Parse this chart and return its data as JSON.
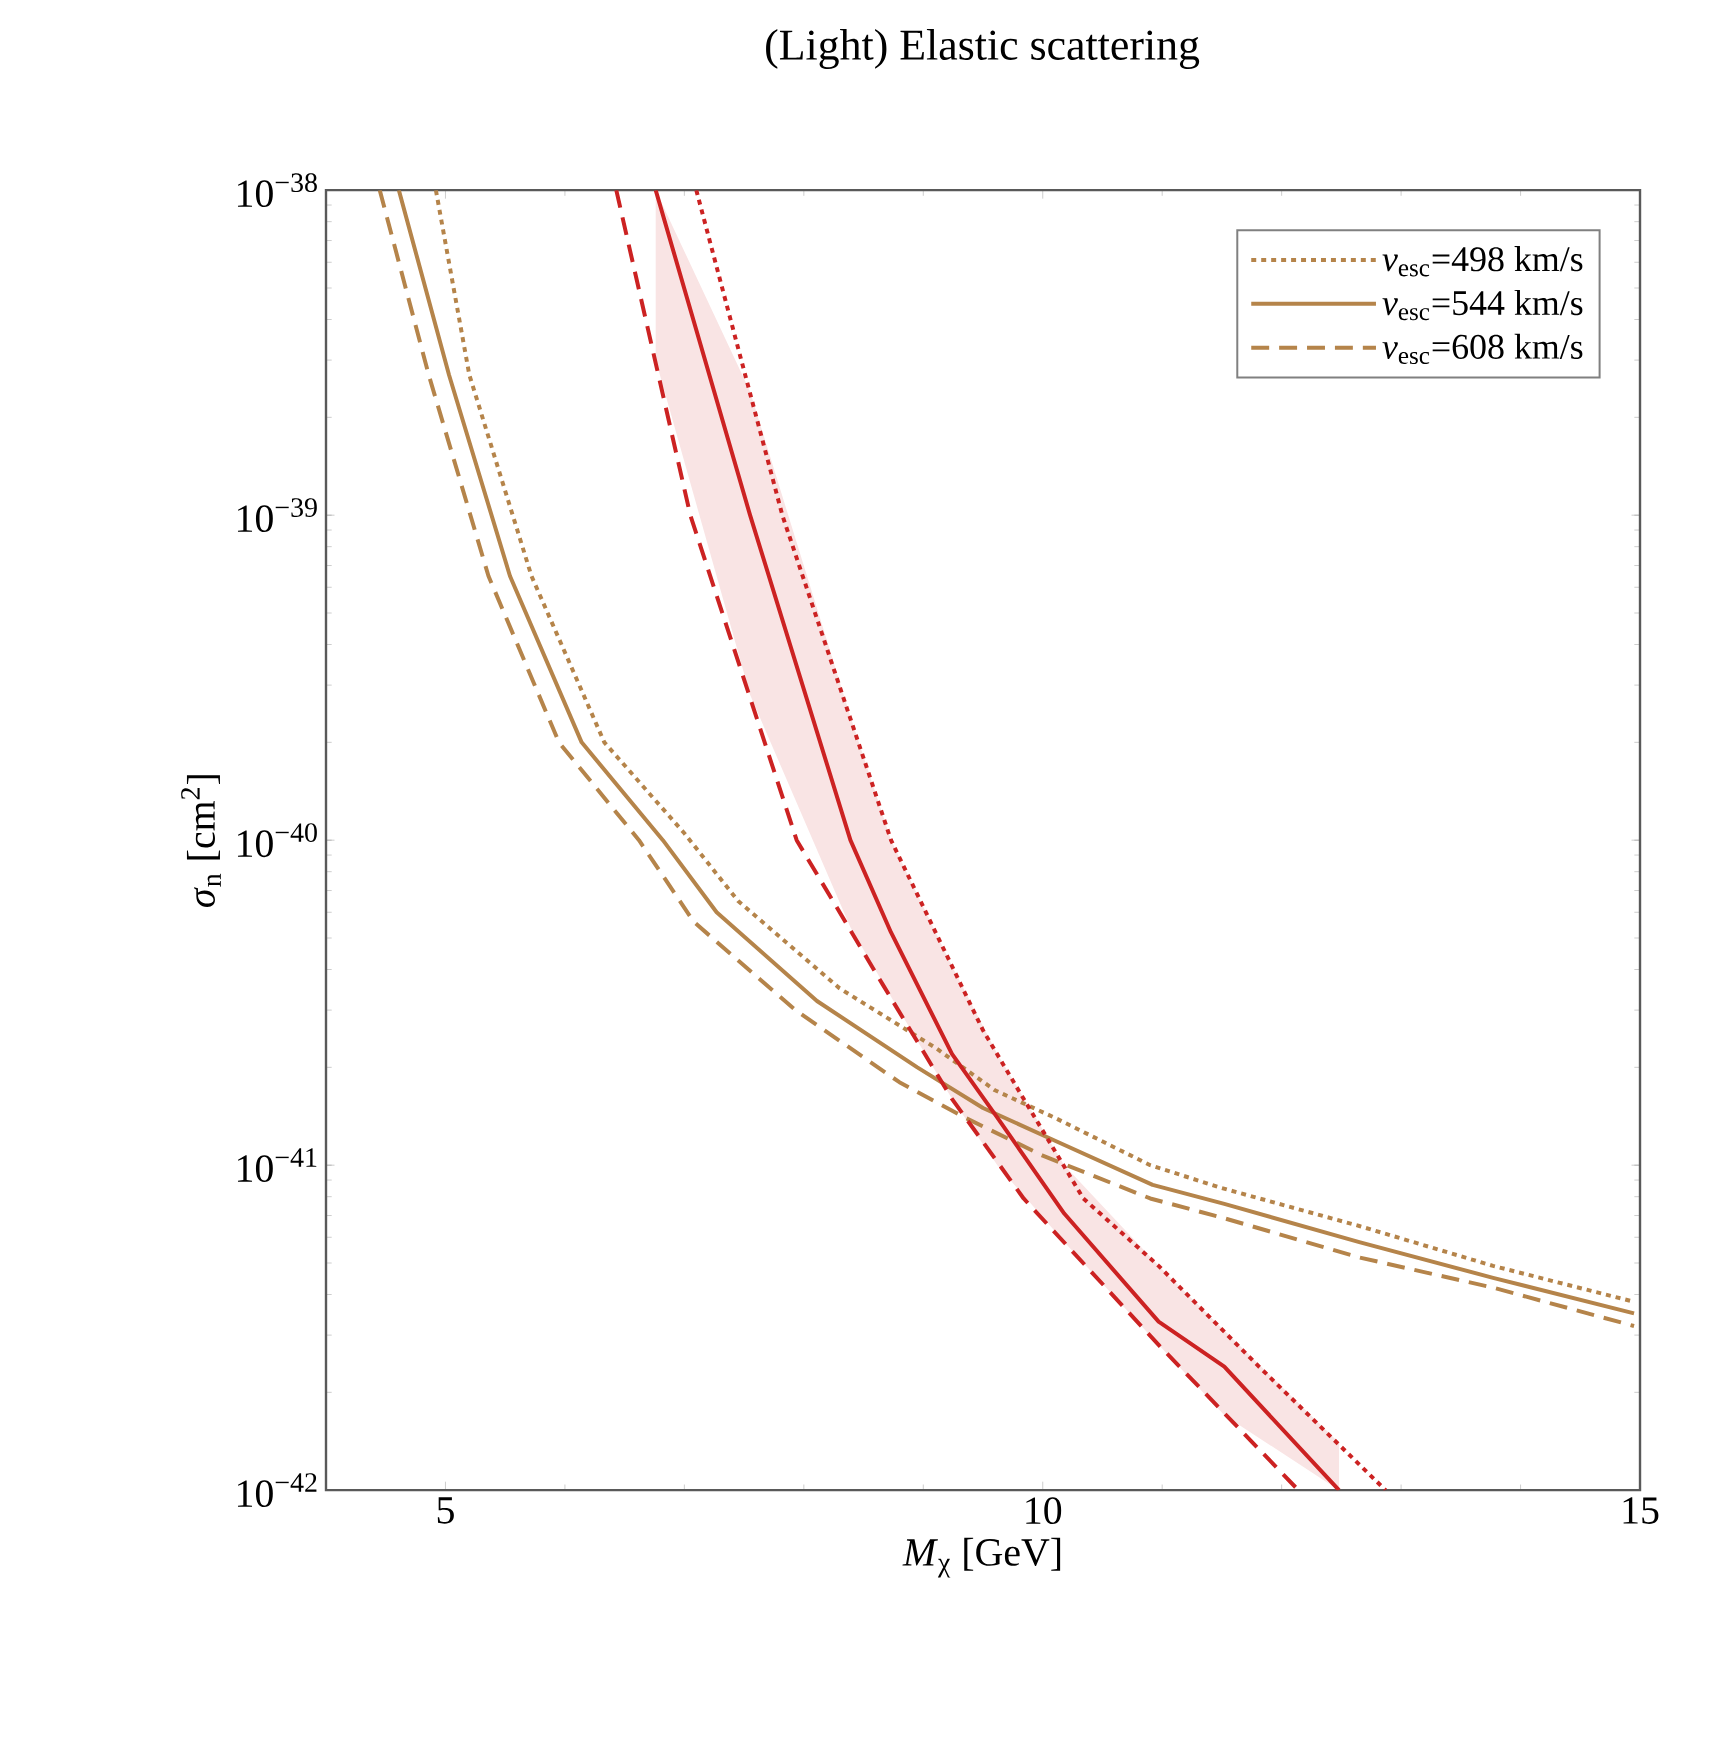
{
  "chart_data": {
    "type": "line",
    "title": "(Light) Elastic scattering",
    "xlabel": "*M*$_{χ}$ [GeV]",
    "ylabel": "*σ*$_{n}$ [cm$^{2}$]",
    "log": "y",
    "legend": "top right",
    "marker": "none",
    "xlim": [
      4,
      15
    ],
    "xticks": [
      5,
      10,
      15
    ],
    "ylim": [
      1e-42,
      1e-38
    ],
    "yticks": [
      {
        "value": 1e-42,
        "label": "10$^{−42}$"
      },
      {
        "value": 1e-41,
        "label": "10$^{−41}$"
      },
      {
        "value": 1e-40,
        "label": "10$^{−40}$"
      },
      {
        "value": 1e-39,
        "label": "10$^{−39}$"
      },
      {
        "value": 1e-38,
        "label": "10$^{−38}$"
      }
    ],
    "series": [
      {
        "name": "*v*$_{esc}$=498 km/s",
        "color": "#b5844a",
        "line_style": "dotted",
        "x": [
          4.92,
          5.2,
          5.72,
          6.33,
          7.0,
          7.45,
          8.3,
          9.1,
          9.6,
          10.1,
          10.9,
          11.5,
          12.65,
          13.77,
          14.95
        ],
        "values": [
          1e-38,
          2.7e-39,
          6.5e-40,
          2e-40,
          1.05e-40,
          6.5e-41,
          3.5e-41,
          2.3e-41,
          1.7e-41,
          1.4e-41,
          1e-41,
          8.5e-42,
          6.5e-42,
          4.9e-42,
          3.8e-42
        ]
      },
      {
        "name": "*v*$_{esc}$=544 km/s",
        "color": "#b5844a",
        "line_style": "solid",
        "x": [
          4.61,
          5.03,
          5.54,
          6.14,
          6.82,
          7.27,
          8.11,
          8.95,
          9.5,
          10.08,
          10.92,
          11.52,
          12.65,
          13.77,
          14.95
        ],
        "values": [
          1e-38,
          2.7e-39,
          6.5e-40,
          2e-40,
          1e-40,
          6e-41,
          3.2e-41,
          2e-41,
          1.5e-41,
          1.2e-41,
          8.7e-42,
          7.6e-42,
          5.8e-42,
          4.5e-42,
          3.5e-42
        ]
      },
      {
        "name": "*v*$_{esc}$=608 km/s",
        "color": "#b5844a",
        "line_style": "dashed",
        "x": [
          4.45,
          4.86,
          5.36,
          5.95,
          6.62,
          7.08,
          7.93,
          8.8,
          9.35,
          10.0,
          10.9,
          11.5,
          12.65,
          13.77,
          14.95
        ],
        "values": [
          1e-38,
          2.7e-39,
          6.5e-40,
          2e-40,
          1e-40,
          5.6e-41,
          3e-41,
          1.8e-41,
          1.4e-41,
          1.07e-41,
          7.9e-42,
          6.9e-42,
          5.2e-42,
          4.2e-42,
          3.2e-42
        ]
      },
      {
        "color": "#cc2222",
        "line_style": "dotted",
        "x": [
          7.1,
          7.82,
          8.73,
          9.5,
          9.84,
          10.34,
          10.97,
          11.81,
          12.87
        ],
        "values": [
          1e-38,
          1e-39,
          1e-40,
          2.6e-41,
          1.6e-41,
          7.9e-42,
          4.9e-42,
          2.4e-42,
          1e-42
        ]
      },
      {
        "color": "#cc2222",
        "line_style": "solid",
        "x": [
          6.76,
          7.55,
          8.39,
          8.73,
          9.24,
          9.62,
          10.18,
          10.97,
          11.52,
          12.48
        ],
        "values": [
          1e-38,
          1e-39,
          1e-40,
          5.2e-41,
          2.2e-41,
          1.4e-41,
          7.1e-42,
          3.3e-42,
          2.4e-42,
          1e-42
        ],
        "upper": [
          1e-38,
          2.4e-39,
          2.4e-40,
          1e-40,
          4.1e-41,
          2.2e-41,
          1e-41,
          4.9e-42,
          3.1e-42,
          1.4e-42
        ],
        "lower": [
          3e-39,
          2.8e-40,
          5.4e-41,
          3.3e-41,
          1.6e-41,
          1e-41,
          5.8e-42,
          2.8e-42,
          1.7e-42,
          1e-42
        ]
      },
      {
        "color": "#cc2222",
        "line_style": "dashed",
        "x": [
          6.43,
          7.05,
          7.94,
          8.66,
          9.24,
          9.84,
          10.97,
          12.14
        ],
        "values": [
          1e-38,
          1e-39,
          1e-40,
          3.6e-41,
          1.6e-41,
          7.9e-42,
          2.8e-42,
          1e-42
        ]
      }
    ]
  }
}
